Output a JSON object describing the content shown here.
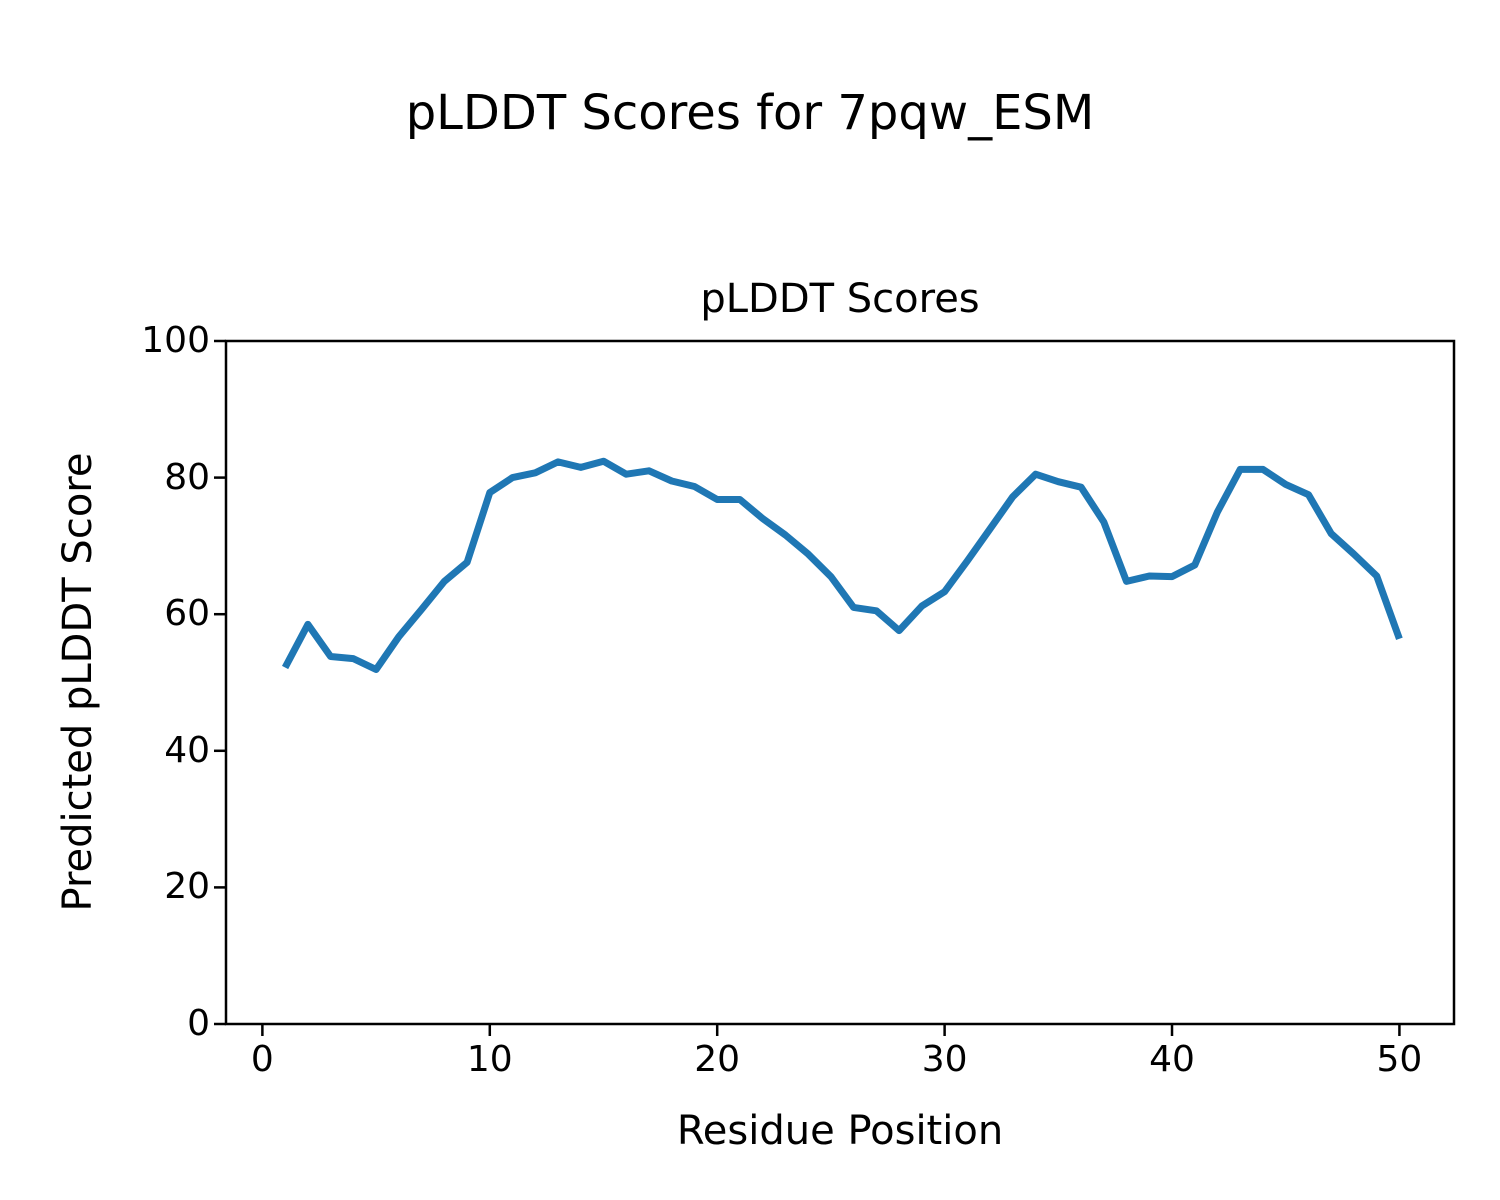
{
  "figure": {
    "suptitle": "pLDDT Scores for 7pqw_ESM",
    "axes_title": "pLDDT Scores",
    "xlabel": "Residue Position",
    "ylabel": "Predicted pLDDT Score"
  },
  "chart_data": {
    "type": "line",
    "title": "pLDDT Scores",
    "suptitle": "pLDDT Scores for 7pqw_ESM",
    "xlabel": "Residue Position",
    "ylabel": "Predicted pLDDT Score",
    "xlim": [
      -1.6,
      52.4
    ],
    "ylim": [
      0,
      100
    ],
    "xticks": [
      0,
      10,
      20,
      30,
      40,
      50
    ],
    "yticks": [
      0,
      20,
      40,
      60,
      80,
      100
    ],
    "grid": false,
    "legend": null,
    "line_color": "#1f77b4",
    "line_width": 7,
    "x": [
      1,
      2,
      3,
      4,
      5,
      6,
      7,
      8,
      9,
      10,
      11,
      12,
      13,
      14,
      15,
      16,
      17,
      18,
      19,
      20,
      21,
      22,
      23,
      24,
      25,
      26,
      27,
      28,
      29,
      30,
      31,
      32,
      33,
      34,
      35,
      36,
      37,
      38,
      39,
      40,
      41,
      42,
      43,
      44,
      45,
      46,
      47,
      48,
      49,
      50
    ],
    "y": [
      52.2,
      58.5,
      53.8,
      53.5,
      51.9,
      56.7,
      60.7,
      64.8,
      67.6,
      77.8,
      80.0,
      80.7,
      82.3,
      81.5,
      82.4,
      80.5,
      81.0,
      79.5,
      78.7,
      76.8,
      76.8,
      74.0,
      71.6,
      68.8,
      65.5,
      61.0,
      60.5,
      57.6,
      61.2,
      63.3,
      67.8,
      72.5,
      77.2,
      80.5,
      79.4,
      78.6,
      73.5,
      64.8,
      65.6,
      65.5,
      67.2,
      75.0,
      81.2,
      81.2,
      79.0,
      77.5,
      71.8,
      68.8,
      65.6,
      56.4
    ]
  }
}
